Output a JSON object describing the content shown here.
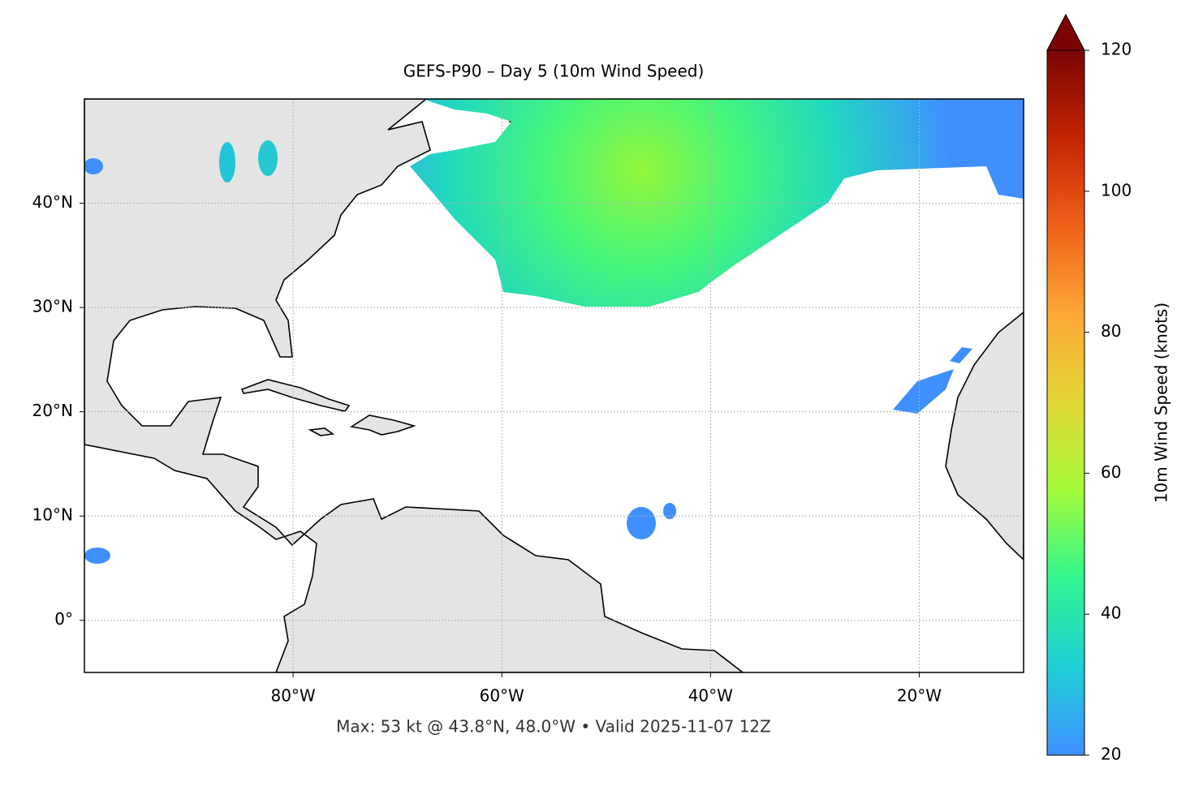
{
  "chart_data": {
    "type": "map",
    "title": "GEFS-P90 – Day 5 (10m Wind Speed)",
    "footnote": "Max: 53 kt @ 43.8°N, 48.0°W • Valid 2025-11-07 12Z",
    "xlim": [
      -100,
      -10
    ],
    "ylim": [
      -5,
      50
    ],
    "xticks": [
      {
        "value": -80,
        "label": "80°W"
      },
      {
        "value": -60,
        "label": "60°W"
      },
      {
        "value": -40,
        "label": "40°W"
      },
      {
        "value": -20,
        "label": "20°W"
      }
    ],
    "yticks": [
      {
        "value": 0,
        "label": "0°"
      },
      {
        "value": 10,
        "label": "10°N"
      },
      {
        "value": 20,
        "label": "20°N"
      },
      {
        "value": 30,
        "label": "30°N"
      },
      {
        "value": 40,
        "label": "40°N"
      }
    ],
    "grid": true,
    "colorbar": {
      "label": "10m Wind Speed (knots)",
      "lim": [
        20,
        120
      ],
      "ticks": [
        20,
        40,
        60,
        80,
        100,
        120
      ],
      "colors": [
        "#3f8fff",
        "#1ecfd6",
        "#2ff58f",
        "#a4fb3a",
        "#e3d736",
        "#fca836",
        "#f0611a",
        "#c42503",
        "#7a0403"
      ],
      "extend": "max"
    }
  }
}
